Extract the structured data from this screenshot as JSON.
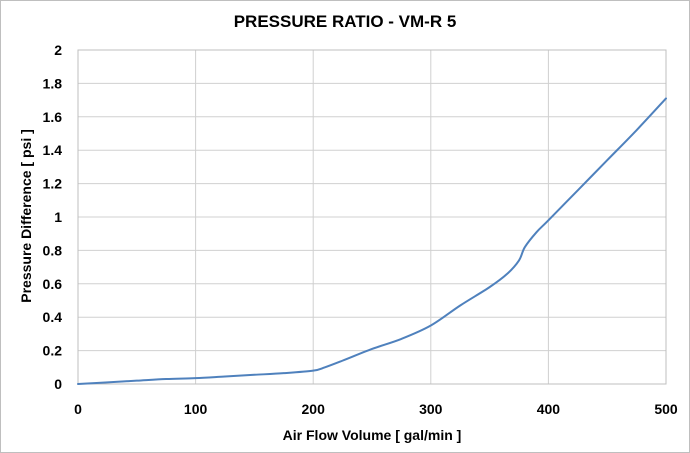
{
  "chart_data": {
    "type": "line",
    "title": "PRESSURE RATIO - VM-R 5",
    "xlabel": "Air Flow Volume  [ gal/min ]",
    "ylabel": "Pressure Difference  [ psi ]",
    "xlim": [
      0,
      500
    ],
    "ylim": [
      0,
      2
    ],
    "xticks": [
      0,
      100,
      200,
      300,
      400,
      500
    ],
    "yticks": [
      0,
      0.2,
      0.4,
      0.6,
      0.8,
      1,
      1.2,
      1.4,
      1.6,
      1.8,
      2
    ],
    "grid": true,
    "legend": "none",
    "series_color": "#4f81bd",
    "series": [
      {
        "x": [
          0,
          25,
          50,
          75,
          100,
          125,
          150,
          175,
          200,
          210,
          225,
          250,
          275,
          300,
          325,
          350,
          365,
          375,
          380,
          390,
          400,
          425,
          450,
          475,
          500
        ],
        "y": [
          0,
          0.01,
          0.02,
          0.03,
          0.035,
          0.045,
          0.055,
          0.065,
          0.08,
          0.1,
          0.14,
          0.21,
          0.27,
          0.35,
          0.47,
          0.58,
          0.66,
          0.74,
          0.82,
          0.91,
          0.98,
          1.16,
          1.34,
          1.52,
          1.71
        ]
      }
    ]
  }
}
